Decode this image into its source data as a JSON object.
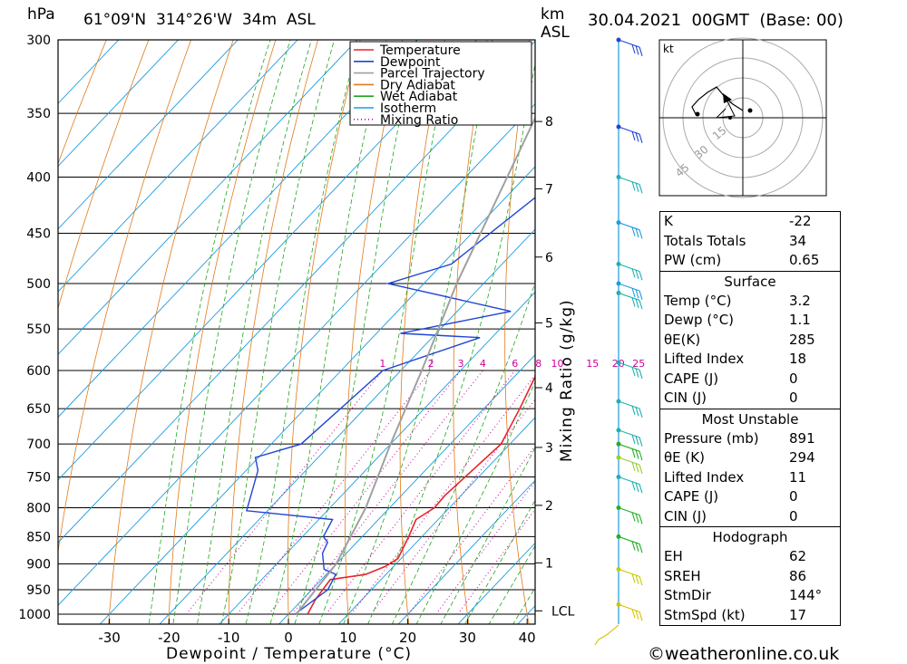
{
  "header": {
    "pressure_unit": "hPa",
    "location": "61°09'N  314°26'W  34m  ASL",
    "km_label": "km",
    "asl_label": "ASL",
    "datetime": "30.04.2021  00GMT  (Base: 00)"
  },
  "credit": "©weatheronline.co.uk",
  "legend": [
    {
      "label": "Temperature",
      "color": "#e8242a",
      "style": "solid"
    },
    {
      "label": "Dewpoint",
      "color": "#1f45d6",
      "style": "solid"
    },
    {
      "label": "Parcel Trajectory",
      "color": "#a0a0a0",
      "style": "solid"
    },
    {
      "label": "Dry Adiabat",
      "color": "#e07a1a",
      "style": "solid"
    },
    {
      "label": "Wet Adiabat",
      "color": "#1fa51f",
      "style": "solid"
    },
    {
      "label": "Isotherm",
      "color": "#1d9de0",
      "style": "solid"
    },
    {
      "label": "Mixing Ratio",
      "color": "#cc0099",
      "style": "dotted"
    }
  ],
  "chart_data": {
    "type": "line",
    "title": "61°09'N  314°26'W  34m  ASL",
    "xlabel": "Dewpoint / Temperature (°C)",
    "ylabel": "hPa",
    "y2label": "Mixing Ratio (g/kg)",
    "xlim": [
      -40,
      40
    ],
    "ylim": [
      1000,
      300
    ],
    "pressure_ticks": [
      300,
      350,
      400,
      450,
      500,
      550,
      600,
      650,
      700,
      750,
      800,
      850,
      900,
      950,
      1000
    ],
    "temperature_ticks": [
      -30,
      -20,
      -10,
      0,
      10,
      20,
      30,
      40
    ],
    "km_ticks": [
      {
        "label": "8",
        "p": 356
      },
      {
        "label": "7",
        "p": 410
      },
      {
        "label": "6",
        "p": 473
      },
      {
        "label": "5",
        "p": 543
      },
      {
        "label": "4",
        "p": 622
      },
      {
        "label": "3",
        "p": 705
      },
      {
        "label": "2",
        "p": 796
      },
      {
        "label": "1",
        "p": 898
      },
      {
        "label": "LCL",
        "p": 993
      }
    ],
    "mixing_ratio_labels": [
      "1",
      "2",
      "3",
      "4",
      "6",
      "8",
      "10",
      "15",
      "20",
      "25"
    ],
    "series": [
      {
        "name": "Temperature",
        "points": [
          [
            1000,
            3.2
          ],
          [
            970,
            2.2
          ],
          [
            930,
            1.5
          ],
          [
            920,
            6.6
          ],
          [
            905,
            8.6
          ],
          [
            890,
            9.5
          ],
          [
            850,
            7.8
          ],
          [
            820,
            6.3
          ],
          [
            800,
            7.5
          ],
          [
            780,
            7.3
          ],
          [
            700,
            8.5
          ],
          [
            650,
            6.0
          ],
          [
            600,
            3.0
          ],
          [
            550,
            0.0
          ],
          [
            530,
            -1.0
          ],
          [
            500,
            -3.0
          ],
          [
            470,
            -3.5
          ],
          [
            450,
            -6.0
          ],
          [
            400,
            -11.5
          ],
          [
            350,
            -15.8
          ],
          [
            300,
            -22.0
          ]
        ]
      },
      {
        "name": "Dewpoint",
        "points": [
          [
            1000,
            1.1
          ],
          [
            950,
            2.7
          ],
          [
            920,
            1.6
          ],
          [
            910,
            -1.2
          ],
          [
            880,
            -4.0
          ],
          [
            860,
            -4.9
          ],
          [
            850,
            -6.5
          ],
          [
            820,
            -7.7
          ],
          [
            805,
            -23.5
          ],
          [
            740,
            -28.0
          ],
          [
            720,
            -30.5
          ],
          [
            700,
            -25.0
          ],
          [
            600,
            -23.0
          ],
          [
            560,
            -12.0
          ],
          [
            555,
            -26.0
          ],
          [
            530,
            -11.0
          ],
          [
            500,
            -36.0
          ],
          [
            480,
            -28.5
          ],
          [
            400,
            -24.0
          ],
          [
            380,
            -24.0
          ],
          [
            330,
            -18.5
          ],
          [
            300,
            -21.0
          ]
        ]
      },
      {
        "name": "Parcel Trajectory",
        "points": [
          [
            1000,
            1.3
          ],
          [
            900,
            0.0
          ],
          [
            800,
            -4.0
          ],
          [
            700,
            -10.0
          ],
          [
            600,
            -16.5
          ],
          [
            500,
            -24.5
          ],
          [
            400,
            -33.0
          ],
          [
            300,
            -44.0
          ]
        ]
      }
    ],
    "hodograph": {
      "unit_label": "kt",
      "ring_labels": [
        "15",
        "30",
        "45"
      ]
    }
  },
  "indices": {
    "general": [
      {
        "label": "K",
        "value": "-22"
      },
      {
        "label": "Totals Totals",
        "value": "34"
      },
      {
        "label": "PW (cm)",
        "value": "0.65"
      }
    ],
    "surface": {
      "title": "Surface",
      "rows": [
        {
          "label": "Temp (°C)",
          "value": "3.2"
        },
        {
          "label": "Dewp (°C)",
          "value": "1.1"
        },
        {
          "label": "θE(K)",
          "value": "285"
        },
        {
          "label": "Lifted Index",
          "value": "18"
        },
        {
          "label": "CAPE (J)",
          "value": "0"
        },
        {
          "label": "CIN (J)",
          "value": "0"
        }
      ]
    },
    "most_unstable": {
      "title": "Most Unstable",
      "rows": [
        {
          "label": "Pressure (mb)",
          "value": "891"
        },
        {
          "label": "θE (K)",
          "value": "294"
        },
        {
          "label": "Lifted Index",
          "value": "11"
        },
        {
          "label": "CAPE (J)",
          "value": "0"
        },
        {
          "label": "CIN (J)",
          "value": "0"
        }
      ]
    },
    "hodograph": {
      "title": "Hodograph",
      "rows": [
        {
          "label": "EH",
          "value": "62"
        },
        {
          "label": "SREH",
          "value": "86"
        },
        {
          "label": "StmDir",
          "value": "144°"
        },
        {
          "label": "StmSpd (kt)",
          "value": "17"
        }
      ]
    }
  }
}
